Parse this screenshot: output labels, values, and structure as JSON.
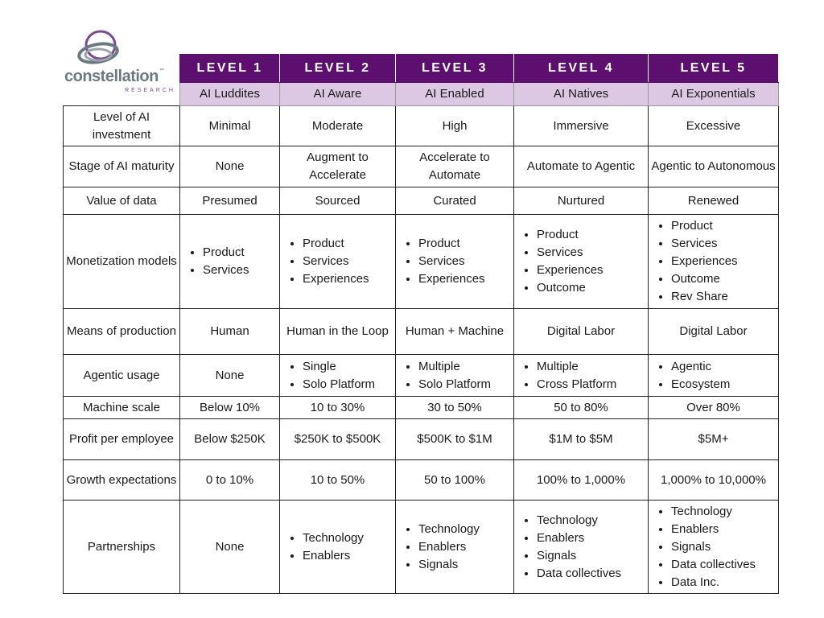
{
  "logo": {
    "name": "constellation",
    "sub": "RESEARCH",
    "tm": "™",
    "accent": "#7b4a8e"
  },
  "colors": {
    "header": "#5c0f6e",
    "subheader": "#dcc8e2"
  },
  "levels": [
    "LEVEL 1",
    "LEVEL 2",
    "LEVEL 3",
    "LEVEL 4",
    "LEVEL 5"
  ],
  "names": [
    "AI Luddites",
    "AI Aware",
    "AI Enabled",
    "AI Natives",
    "AI Exponentials"
  ],
  "rows": [
    {
      "label": "Level of AI investment",
      "cells": [
        "Minimal",
        "Moderate",
        "High",
        "Immersive",
        "Excessive"
      ]
    },
    {
      "label": "Stage of AI maturity",
      "cells": [
        "None",
        "Augment to Accelerate",
        "Accelerate to Automate",
        "Automate to Agentic",
        "Agentic to Autonomous"
      ]
    },
    {
      "label": "Value of data",
      "cells": [
        "Presumed",
        "Sourced",
        "Curated",
        "Nurtured",
        "Renewed"
      ]
    },
    {
      "label": "Monetization models",
      "cells": [
        [
          "Product",
          "Services"
        ],
        [
          "Product",
          "Services",
          "Experiences"
        ],
        [
          "Product",
          "Services",
          "Experiences"
        ],
        [
          "Product",
          "Services",
          "Experiences",
          "Outcome"
        ],
        [
          "Product",
          "Services",
          "Experiences",
          "Outcome",
          "Rev Share"
        ]
      ]
    },
    {
      "label": "Means of production",
      "cells": [
        "Human",
        "Human in the Loop",
        "Human + Machine",
        "Digital Labor",
        "Digital Labor"
      ]
    },
    {
      "label": "Agentic usage",
      "cells": [
        "None",
        [
          "Single",
          "Solo Platform"
        ],
        [
          "Multiple",
          "Solo Platform"
        ],
        [
          "Multiple",
          "Cross Platform"
        ],
        [
          "Agentic",
          "Ecosystem"
        ]
      ]
    },
    {
      "label": "Machine scale",
      "cells": [
        "Below 10%",
        "10 to 30%",
        "30 to 50%",
        "50 to 80%",
        "Over 80%"
      ]
    },
    {
      "label": "Profit per employee",
      "cells": [
        "Below $250K",
        "$250K to $500K",
        "$500K to $1M",
        "$1M to $5M",
        "$5M+"
      ]
    },
    {
      "label": "Growth expectations",
      "cells": [
        "0 to 10%",
        "10 to 50%",
        "50 to 100%",
        "100% to 1,000%",
        "1,000% to 10,000%"
      ]
    },
    {
      "label": "Partnerships",
      "cells": [
        "None",
        [
          "Technology",
          "Enablers"
        ],
        [
          "Technology",
          "Enablers",
          "Signals"
        ],
        [
          "Technology",
          "Enablers",
          "Signals",
          "Data collectives"
        ],
        [
          "Technology",
          "Enablers",
          "Signals",
          "Data collectives",
          "Data Inc."
        ]
      ]
    }
  ]
}
